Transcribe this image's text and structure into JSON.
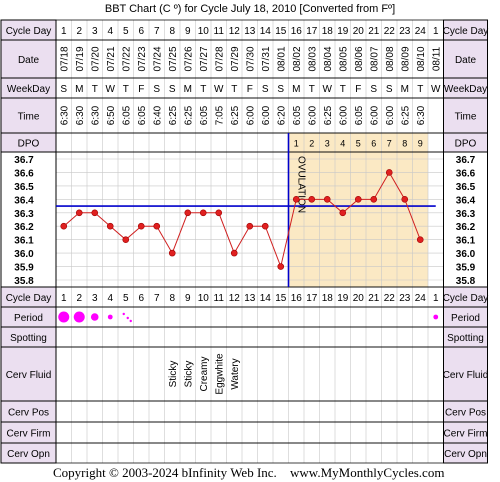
{
  "title": "BBT Chart (C º) for Cycle July 18, 2010  [Converted from Fº]",
  "footer": {
    "copyright": "Copyright © 2003-2024 bInfinity Web Inc.",
    "site": "www.MyMonthlyCycles.com"
  },
  "row_labels": {
    "cycle_day": "Cycle Day",
    "date": "Date",
    "weekday": "WeekDay",
    "time": "Time",
    "dpo": "DPO",
    "period": "Period",
    "spotting": "Spotting",
    "cerv_fluid": "Cerv Fluid",
    "cerv_pos": "Cerv Pos",
    "cerv_firm": "Cerv Firm",
    "cerv_opn": "Cerv Opn"
  },
  "ovulation_label": "OVULATION",
  "colors": {
    "accent": "#e02020",
    "coverline": "#0000cc",
    "lutealShade": "#fbe9c4",
    "period": "#ff00ff",
    "labelBg": "#ebdff0",
    "grid": "#c8c8c8",
    "line": "#d02020"
  },
  "chart_data": {
    "type": "line",
    "title": "BBT Chart (C º) for Cycle July 18, 2010  [Converted from Fº]",
    "xlabel": "Cycle Day",
    "ylabel": "",
    "ylim": [
      35.8,
      36.7
    ],
    "y_ticks": [
      "36.7",
      "36.6",
      "36.5",
      "36.4",
      "36.3",
      "36.2",
      "36.1",
      "36.0",
      "35.9",
      "35.8"
    ],
    "coverline": 36.35,
    "ovulation_day": 15,
    "grid": true,
    "cycle_days": [
      "1",
      "2",
      "3",
      "4",
      "5",
      "6",
      "7",
      "8",
      "9",
      "10",
      "11",
      "12",
      "13",
      "14",
      "15",
      "16",
      "17",
      "18",
      "19",
      "20",
      "21",
      "22",
      "23",
      "24",
      "1"
    ],
    "dates": [
      "07/18",
      "07/19",
      "07/20",
      "07/21",
      "07/22",
      "07/23",
      "07/24",
      "07/25",
      "07/26",
      "07/27",
      "07/28",
      "07/29",
      "07/30",
      "07/31",
      "08/01",
      "08/02",
      "08/03",
      "08/04",
      "08/05",
      "08/06",
      "08/07",
      "08/08",
      "08/09",
      "08/10",
      "08/11"
    ],
    "weekdays": [
      "S",
      "M",
      "T",
      "W",
      "T",
      "F",
      "S",
      "S",
      "M",
      "T",
      "W",
      "T",
      "F",
      "S",
      "S",
      "M",
      "T",
      "W",
      "T",
      "F",
      "S",
      "S",
      "M",
      "T",
      "W"
    ],
    "times": [
      "6:30",
      "6:30",
      "6:30",
      "6:50",
      "6:05",
      "6:05",
      "6:40",
      "6:25",
      "6:25",
      "6:05",
      "7:05",
      "6:25",
      "6:00",
      "6:00",
      "6:20",
      "6:05",
      "6:00",
      "6:25",
      "6:00",
      "6:05",
      "6:00",
      "6:00",
      "6:25",
      "6:30",
      ""
    ],
    "dpo": [
      "",
      "",
      "",
      "",
      "",
      "",
      "",
      "",
      "",
      "",
      "",
      "",
      "",
      "",
      "",
      "1",
      "2",
      "3",
      "4",
      "5",
      "6",
      "7",
      "8",
      "9",
      ""
    ],
    "temps": [
      36.2,
      36.3,
      36.3,
      36.2,
      36.1,
      36.2,
      36.2,
      36.0,
      36.3,
      36.3,
      36.3,
      36.0,
      36.2,
      36.2,
      35.9,
      36.4,
      36.4,
      36.4,
      36.3,
      36.4,
      36.4,
      36.6,
      36.4,
      36.1,
      null
    ],
    "period": [
      3,
      3,
      2,
      1,
      0.5,
      0,
      0,
      0,
      0,
      0,
      0,
      0,
      0,
      0,
      0,
      0,
      0,
      0,
      0,
      0,
      0,
      0,
      0,
      0,
      1
    ],
    "cerv_fluid": [
      "",
      "",
      "",
      "",
      "",
      "",
      "",
      "Sticky",
      "Sticky",
      "Creamy",
      "Eggwhite",
      "Watery",
      "",
      "",
      "",
      "",
      "",
      "",
      "",
      "",
      "",
      "",
      "",
      "",
      ""
    ]
  }
}
